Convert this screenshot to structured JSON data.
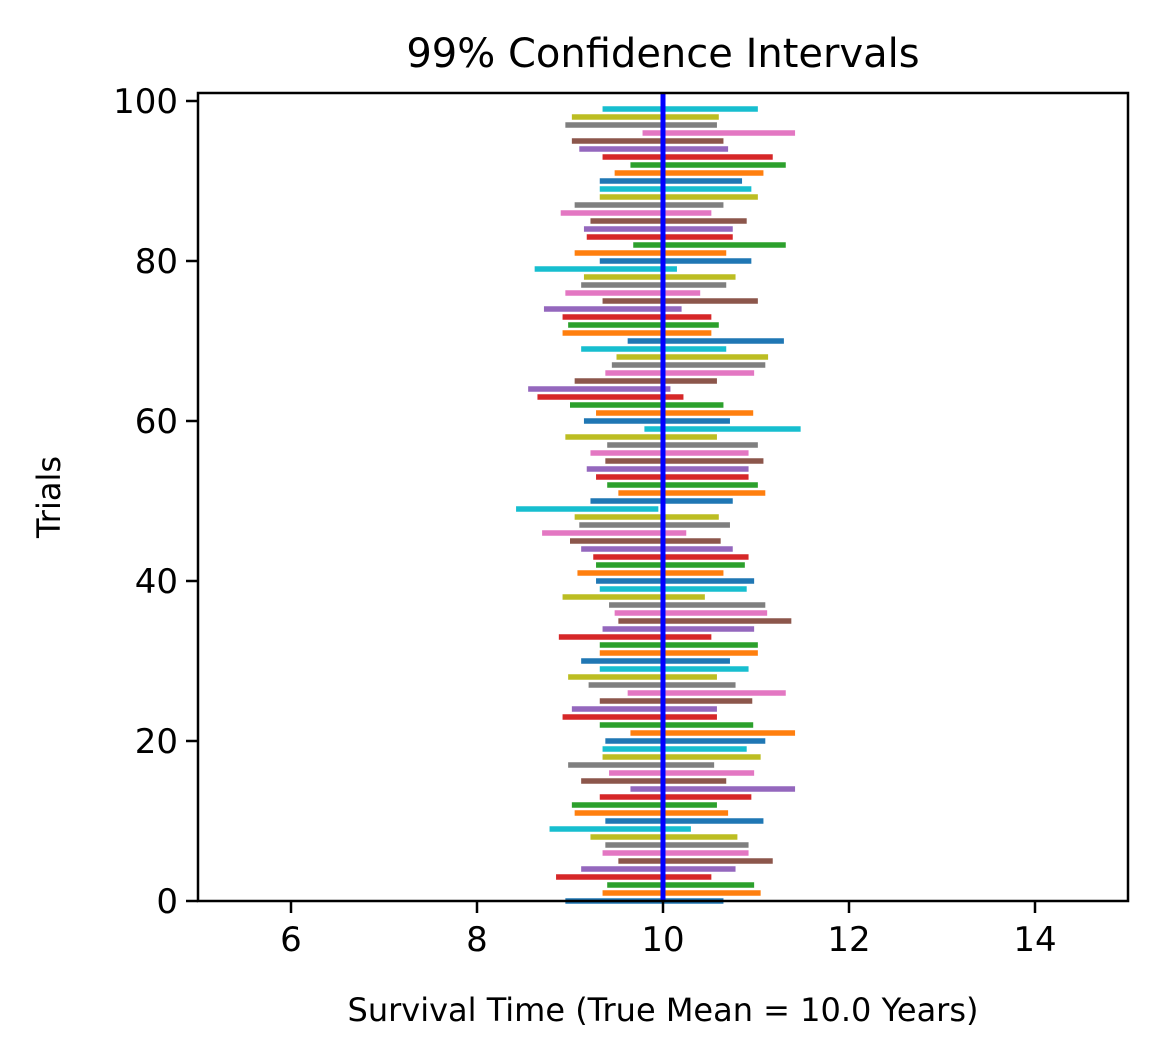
{
  "chart_data": {
    "type": "interval",
    "title": "99% Confidence Intervals",
    "xlabel": "Survival Time (True Mean = 10.0 Years)",
    "ylabel": "Trials",
    "xlim": [
      5,
      15
    ],
    "ylim": [
      0,
      101
    ],
    "x_ticks": [
      6,
      8,
      10,
      12,
      14
    ],
    "y_ticks": [
      0,
      20,
      40,
      60,
      80,
      100
    ],
    "true_mean": 10.0,
    "true_mean_color": "#0000ff",
    "series_colors": [
      "#1f77b4",
      "#ff7f0e",
      "#2ca02c",
      "#d62728",
      "#9467bd",
      "#8c564b",
      "#e377c2",
      "#7f7f7f",
      "#bcbd22",
      "#17becf"
    ],
    "grid": false,
    "legend": "none",
    "intervals": [
      [
        8.95,
        10.65
      ],
      [
        9.35,
        11.05
      ],
      [
        9.4,
        10.98
      ],
      [
        8.85,
        10.52
      ],
      [
        9.12,
        10.78
      ],
      [
        9.52,
        11.18
      ],
      [
        9.35,
        10.92
      ],
      [
        9.38,
        10.92
      ],
      [
        9.22,
        10.8
      ],
      [
        8.78,
        10.3
      ],
      [
        9.38,
        11.08
      ],
      [
        9.05,
        10.7
      ],
      [
        9.02,
        10.58
      ],
      [
        9.32,
        10.95
      ],
      [
        9.65,
        11.42
      ],
      [
        9.12,
        10.68
      ],
      [
        9.42,
        10.98
      ],
      [
        8.98,
        10.55
      ],
      [
        9.35,
        11.05
      ],
      [
        9.35,
        10.9
      ],
      [
        9.38,
        11.1
      ],
      [
        9.65,
        11.42
      ],
      [
        9.32,
        10.97
      ],
      [
        8.92,
        10.58
      ],
      [
        9.02,
        10.58
      ],
      [
        9.32,
        10.96
      ],
      [
        9.62,
        11.32
      ],
      [
        9.2,
        10.78
      ],
      [
        8.98,
        10.58
      ],
      [
        9.32,
        10.92
      ],
      [
        9.12,
        10.72
      ],
      [
        9.32,
        11.02
      ],
      [
        9.32,
        11.02
      ],
      [
        8.88,
        10.52
      ],
      [
        9.35,
        10.98
      ],
      [
        9.52,
        11.38
      ],
      [
        9.48,
        11.12
      ],
      [
        9.42,
        11.1
      ],
      [
        8.92,
        10.45
      ],
      [
        9.32,
        10.9
      ],
      [
        9.28,
        10.98
      ],
      [
        9.08,
        10.65
      ],
      [
        9.28,
        10.88
      ],
      [
        9.25,
        10.92
      ],
      [
        9.12,
        10.75
      ],
      [
        9.0,
        10.62
      ],
      [
        8.7,
        10.25
      ],
      [
        9.1,
        10.72
      ],
      [
        9.05,
        10.6
      ],
      [
        8.42,
        9.95
      ],
      [
        9.22,
        10.75
      ],
      [
        9.52,
        11.1
      ],
      [
        9.4,
        11.02
      ],
      [
        9.28,
        10.92
      ],
      [
        9.18,
        10.92
      ],
      [
        9.38,
        11.08
      ],
      [
        9.22,
        10.92
      ],
      [
        9.4,
        11.02
      ],
      [
        8.95,
        10.58
      ],
      [
        9.8,
        11.48
      ],
      [
        9.15,
        10.72
      ],
      [
        9.28,
        10.97
      ],
      [
        9.0,
        10.65
      ],
      [
        8.65,
        10.22
      ],
      [
        8.55,
        10.08
      ],
      [
        9.05,
        10.58
      ],
      [
        9.38,
        10.98
      ],
      [
        9.45,
        11.1
      ],
      [
        9.5,
        11.13
      ],
      [
        9.12,
        10.68
      ],
      [
        9.62,
        11.3
      ],
      [
        8.92,
        10.52
      ],
      [
        8.98,
        10.6
      ],
      [
        8.92,
        10.52
      ],
      [
        8.72,
        10.2
      ],
      [
        9.35,
        11.02
      ],
      [
        8.95,
        10.4
      ],
      [
        9.12,
        10.68
      ],
      [
        9.15,
        10.78
      ],
      [
        8.62,
        10.15
      ],
      [
        9.32,
        10.95
      ],
      [
        9.05,
        10.68
      ],
      [
        9.68,
        11.32
      ],
      [
        9.18,
        10.75
      ],
      [
        9.15,
        10.75
      ],
      [
        9.22,
        10.9
      ],
      [
        8.9,
        10.52
      ],
      [
        9.05,
        10.65
      ],
      [
        9.32,
        11.02
      ],
      [
        9.32,
        10.95
      ],
      [
        9.32,
        10.85
      ],
      [
        9.48,
        11.08
      ],
      [
        9.65,
        11.32
      ],
      [
        9.35,
        11.18
      ],
      [
        9.1,
        10.7
      ],
      [
        9.02,
        10.65
      ],
      [
        9.78,
        11.42
      ],
      [
        8.95,
        10.58
      ],
      [
        9.02,
        10.6
      ],
      [
        9.35,
        11.02
      ]
    ]
  }
}
